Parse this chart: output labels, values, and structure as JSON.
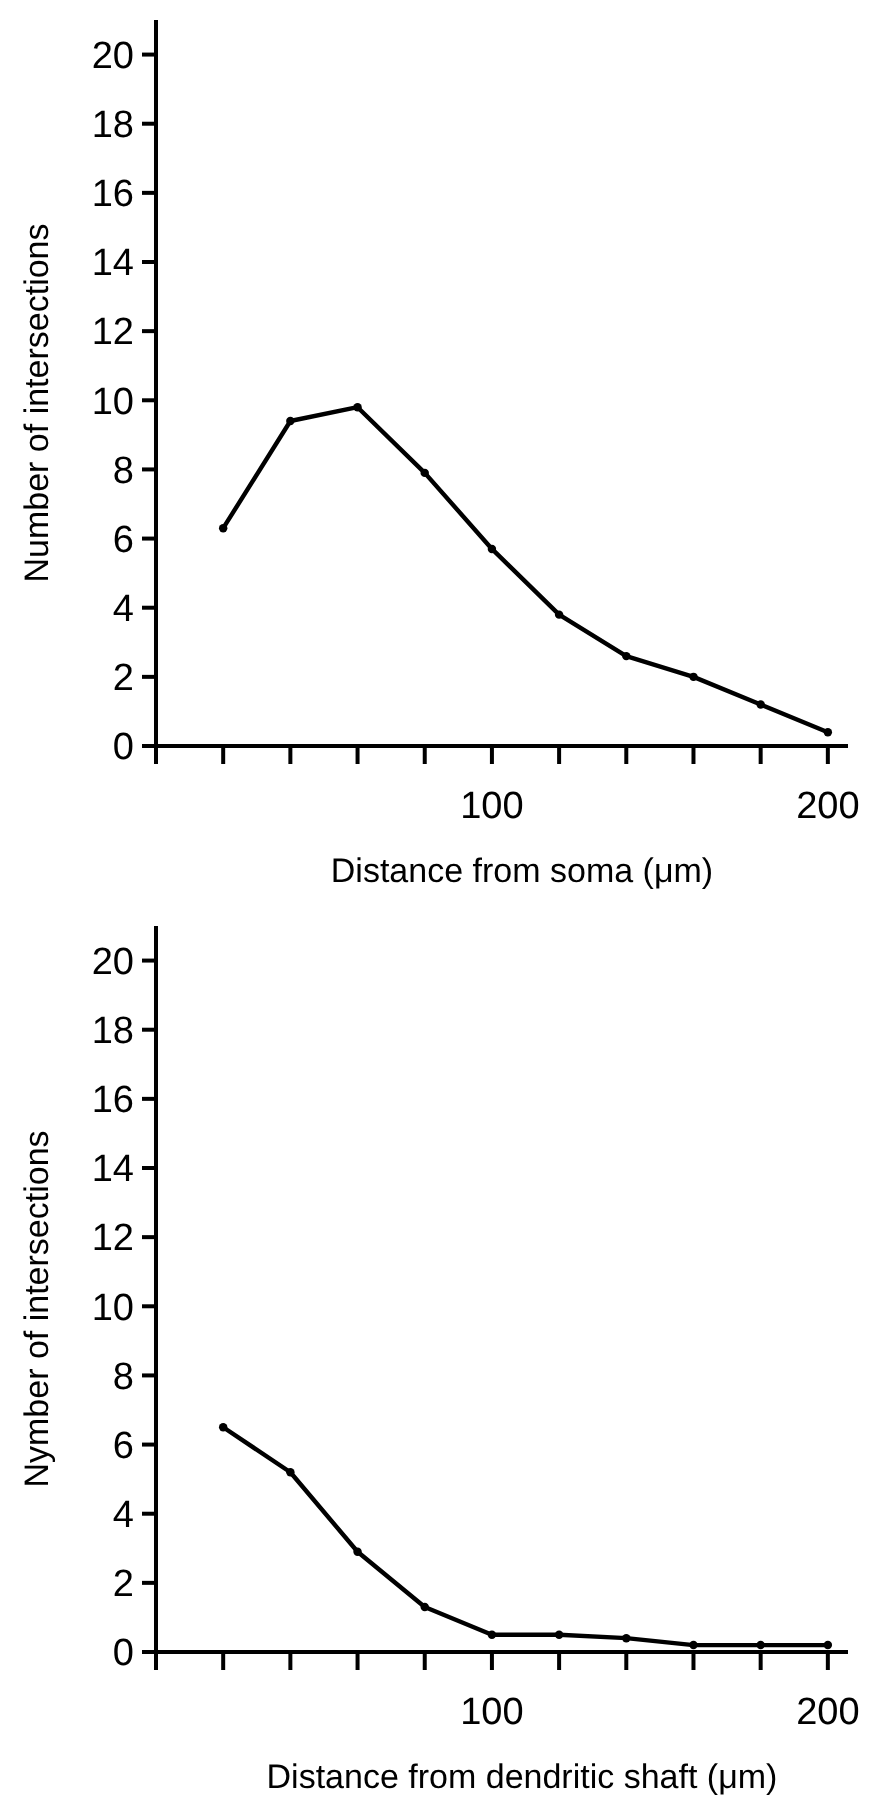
{
  "chart_data": [
    {
      "type": "line",
      "xlabel": "Distance from soma (μm)",
      "ylabel": "Number of intersections",
      "x": [
        20,
        40,
        60,
        80,
        100,
        120,
        140,
        160,
        180,
        200
      ],
      "series": [
        {
          "color": "#000000",
          "values": [
            6.3,
            9.4,
            9.8,
            7.9,
            5.7,
            3.8,
            2.6,
            2.0,
            1.2,
            0.4
          ]
        }
      ],
      "xlim": [
        0,
        206
      ],
      "xticks": [
        {
          "value": 0,
          "label": null
        },
        {
          "value": 20,
          "label": null
        },
        {
          "value": 40,
          "label": null
        },
        {
          "value": 60,
          "label": null
        },
        {
          "value": 80,
          "label": null
        },
        {
          "value": 100,
          "label": "100"
        },
        {
          "value": 120,
          "label": null
        },
        {
          "value": 140,
          "label": null
        },
        {
          "value": 160,
          "label": null
        },
        {
          "value": 180,
          "label": null
        },
        {
          "value": 200,
          "label": "200"
        }
      ],
      "ylim": [
        0,
        21
      ],
      "yticks": [
        0,
        2,
        4,
        6,
        8,
        10,
        12,
        14,
        16,
        18,
        20
      ],
      "grid": false,
      "marker": "circle",
      "line_style": "solid"
    },
    {
      "type": "line",
      "xlabel": "Distance from dendritic shaft (μm)",
      "ylabel": "Nymber of intersections",
      "x": [
        20,
        40,
        60,
        80,
        100,
        120,
        140,
        160,
        180,
        200
      ],
      "series": [
        {
          "color": "#000000",
          "values": [
            6.5,
            5.2,
            2.9,
            1.3,
            0.5,
            0.5,
            0.4,
            0.2,
            0.2,
            0.2
          ]
        }
      ],
      "xlim": [
        0,
        206
      ],
      "xticks": [
        {
          "value": 0,
          "label": null
        },
        {
          "value": 20,
          "label": null
        },
        {
          "value": 40,
          "label": null
        },
        {
          "value": 60,
          "label": null
        },
        {
          "value": 80,
          "label": null
        },
        {
          "value": 100,
          "label": "100"
        },
        {
          "value": 120,
          "label": null
        },
        {
          "value": 140,
          "label": null
        },
        {
          "value": 160,
          "label": null
        },
        {
          "value": 180,
          "label": null
        },
        {
          "value": 200,
          "label": "200"
        }
      ],
      "ylim": [
        0,
        21
      ],
      "yticks": [
        0,
        2,
        4,
        6,
        8,
        10,
        12,
        14,
        16,
        18,
        20
      ],
      "grid": false,
      "marker": "circle",
      "line_style": "solid"
    }
  ]
}
